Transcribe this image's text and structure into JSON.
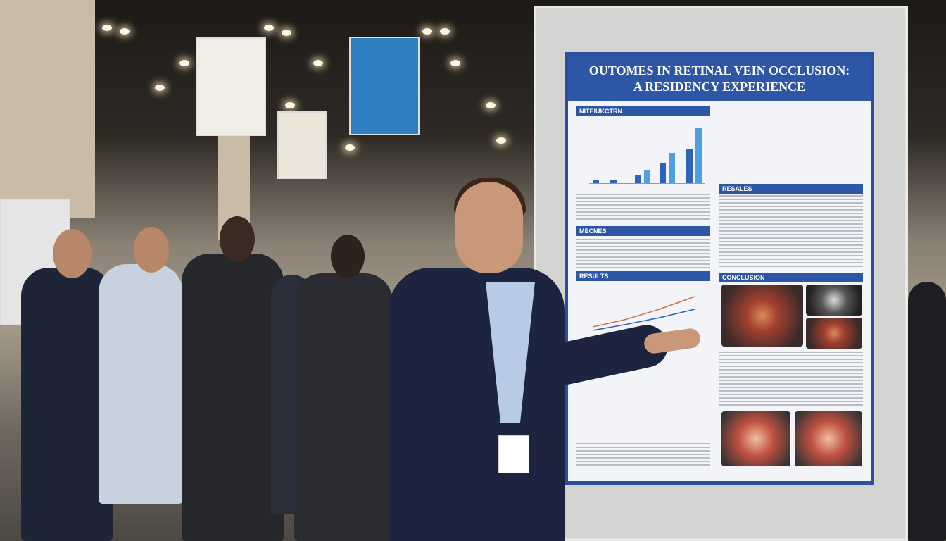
{
  "scene": {
    "description_tags": [
      "conference-hall",
      "poster-session",
      "presenter"
    ]
  },
  "poster": {
    "title_line1": "OUTOMES IN RETINAL VEIN OCCLUSION:",
    "title_line2": "A RESIDENCY EXPERIENCE",
    "sections": {
      "introduction": "NITEIUKCTRN",
      "methods": "MECNES",
      "results_left": "RESULTS",
      "results_right": "RESALES",
      "conclusion": "CONCLUSION"
    },
    "accent_color": "#2d56a6"
  }
}
